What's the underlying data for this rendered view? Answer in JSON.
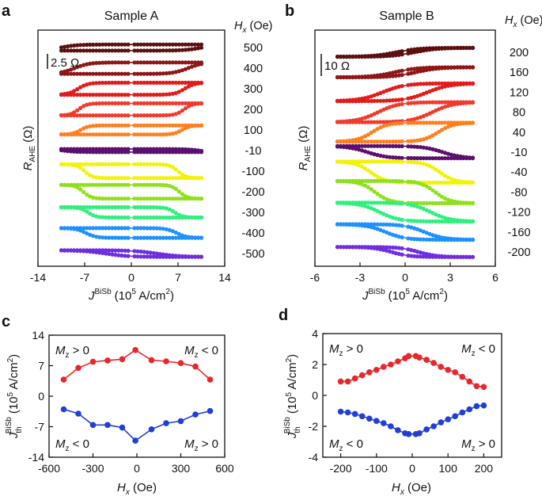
{
  "chart_data": [
    {
      "panel": "a",
      "type": "line",
      "title": "Sample A",
      "xlabel_parts": [
        "J",
        "BiSb",
        "(10",
        "5",
        " A/cm",
        "2",
        ")"
      ],
      "ylabel_parts": [
        "R",
        "AHE",
        " (Ω)"
      ],
      "right_header_parts": [
        "H",
        "x",
        " (Oe)"
      ],
      "scale_bar_label": "2.5 Ω",
      "xlim": [
        -14,
        14
      ],
      "xticks": [
        -14,
        -7,
        0,
        7,
        14
      ],
      "xmax_sweep": 10.5,
      "scale_ohm": 2.5,
      "offset_ohm": 2.7,
      "series": [
        {
          "hx": "500",
          "color": "#5c0f0f",
          "jth": 10.6,
          "dr": 1.0,
          "sweep": 2.5
        },
        {
          "hx": "400",
          "color": "#8e1616",
          "jth": 8.5,
          "dr": 1.9,
          "sweep": 2.2
        },
        {
          "hx": "300",
          "color": "#e21b1b",
          "jth": 8.0,
          "dr": 2.0,
          "sweep": 1.5
        },
        {
          "hx": "200",
          "color": "#ef3b2c",
          "jth": 7.9,
          "dr": 2.0,
          "sweep": 1.2
        },
        {
          "hx": "100",
          "color": "#ff7f1e",
          "jth": 7.6,
          "dr": 1.5,
          "sweep": 1.2
        },
        {
          "hx": "-10",
          "color": "#5b0f6e",
          "jth": 10.2,
          "dr": -0.5,
          "sweep": 2.0
        },
        {
          "hx": "-100",
          "color": "#f2f20a",
          "jth": 7.0,
          "dr": -2.3,
          "sweep": 1.2
        },
        {
          "hx": "-200",
          "color": "#8fe01c",
          "jth": 7.2,
          "dr": -2.3,
          "sweep": 1.2
        },
        {
          "hx": "-300",
          "color": "#2ff07c",
          "jth": 6.5,
          "dr": -1.7,
          "sweep": 1.2
        },
        {
          "hx": "-400",
          "color": "#1e90ff",
          "jth": 6.8,
          "dr": -1.6,
          "sweep": 1.5
        },
        {
          "hx": "-500",
          "color": "#6e2ee0",
          "jth": 3.8,
          "dr": -1.1,
          "sweep": 3.5
        }
      ]
    },
    {
      "panel": "b",
      "type": "line",
      "title": "Sample B",
      "xlabel_parts": [
        "J",
        "BiSb",
        "(10",
        "5",
        " A/cm",
        "2",
        ")"
      ],
      "ylabel_parts": [
        "R",
        "AHE",
        " (Ω)"
      ],
      "right_header_parts": [
        "H",
        "x",
        " (Oe)"
      ],
      "scale_bar_label": "10 Ω",
      "xlim": [
        -6,
        6
      ],
      "xticks": [
        -6,
        -3,
        0,
        3,
        6
      ],
      "xmax_sweep": 4.5,
      "scale_ohm": 10,
      "offset_ohm": 11.5,
      "series": [
        {
          "hx": "200",
          "color": "#5c0f0f",
          "jth": 0.6,
          "dr": 4.0,
          "sweep": 1.5
        },
        {
          "hx": "160",
          "color": "#8e1616",
          "jth": 0.7,
          "dr": 4.5,
          "sweep": 1.5
        },
        {
          "hx": "120",
          "color": "#e21b1b",
          "jth": 1.5,
          "dr": 8.0,
          "sweep": 1.5
        },
        {
          "hx": "80",
          "color": "#ef3b2c",
          "jth": 1.8,
          "dr": 9.0,
          "sweep": 1.4
        },
        {
          "hx": "40",
          "color": "#ff7f1e",
          "jth": 2.2,
          "dr": 8.5,
          "sweep": 1.0
        },
        {
          "hx": "-10",
          "color": "#5b0f6e",
          "jth": 2.5,
          "dr": -5.5,
          "sweep": 1.3
        },
        {
          "hx": "-40",
          "color": "#f2f20a",
          "jth": 2.3,
          "dr": -9.5,
          "sweep": 1.0
        },
        {
          "hx": "-80",
          "color": "#8fe01c",
          "jth": 2.0,
          "dr": -10.0,
          "sweep": 1.0
        },
        {
          "hx": "-120",
          "color": "#2ff07c",
          "jth": 1.7,
          "dr": -8.5,
          "sweep": 1.3
        },
        {
          "hx": "-160",
          "color": "#1e90ff",
          "jth": 1.3,
          "dr": -7.0,
          "sweep": 1.3
        },
        {
          "hx": "-200",
          "color": "#6e2ee0",
          "jth": 0.9,
          "dr": -4.5,
          "sweep": 1.2
        }
      ]
    },
    {
      "panel": "c",
      "type": "line",
      "xlabel_parts": [
        "H",
        "x",
        " (Oe)"
      ],
      "ylabel_parts": [
        "J",
        "th",
        "BiSb",
        "(10",
        "5",
        " A/cm",
        "2",
        ")"
      ],
      "xlim": [
        -600,
        600
      ],
      "ylim": [
        -14,
        14
      ],
      "xticks": [
        -600,
        -300,
        0,
        300,
        600
      ],
      "yticks": [
        -14,
        -7,
        0,
        7,
        14
      ],
      "series": [
        {
          "name": "positive",
          "color": "#e8262b",
          "x": [
            -500,
            -400,
            -300,
            -200,
            -100,
            -10,
            100,
            200,
            300,
            400,
            500
          ],
          "y": [
            3.8,
            6.5,
            7.9,
            8.2,
            8.5,
            10.6,
            8.3,
            8.0,
            7.6,
            6.8,
            3.8
          ]
        },
        {
          "name": "negative",
          "color": "#1f3fd6",
          "x": [
            -500,
            -400,
            -300,
            -200,
            -100,
            -10,
            100,
            200,
            300,
            400,
            500
          ],
          "y": [
            -3.0,
            -4.0,
            -6.6,
            -6.6,
            -7.2,
            -10.2,
            -7.6,
            -6.2,
            -5.7,
            -4.2,
            -3.4
          ]
        }
      ],
      "annotations": [
        {
          "text": "M_z > 0",
          "corner": "top-left",
          "m": "M",
          "sub": "z",
          "rest": " > 0"
        },
        {
          "text": "M_z < 0",
          "corner": "top-right",
          "m": "M",
          "sub": "z",
          "rest": " < 0"
        },
        {
          "text": "M_z < 0",
          "corner": "bottom-left",
          "m": "M",
          "sub": "z",
          "rest": " < 0"
        },
        {
          "text": "M_z > 0",
          "corner": "bottom-right",
          "m": "M",
          "sub": "z",
          "rest": " > 0"
        }
      ]
    },
    {
      "panel": "d",
      "type": "line",
      "xlabel_parts": [
        "H",
        "x",
        " (Oe)"
      ],
      "ylabel_parts": [
        "J",
        "th",
        "BiSb",
        "(10",
        "5",
        " A/cm",
        "2",
        ")"
      ],
      "xlim": [
        -250,
        250
      ],
      "ylim": [
        -4,
        4
      ],
      "xticks": [
        -200,
        -100,
        0,
        100,
        200
      ],
      "yticks": [
        -4,
        -2,
        0,
        2,
        4
      ],
      "series": [
        {
          "name": "positive",
          "color": "#e8262b",
          "x": [
            -200,
            -180,
            -160,
            -140,
            -120,
            -100,
            -80,
            -60,
            -40,
            -20,
            -10,
            10,
            20,
            40,
            60,
            80,
            100,
            120,
            140,
            160,
            180,
            200
          ],
          "y": [
            0.9,
            0.9,
            1.1,
            1.3,
            1.5,
            1.65,
            1.85,
            2.0,
            2.2,
            2.4,
            2.55,
            2.55,
            2.45,
            2.3,
            2.1,
            1.85,
            1.65,
            1.5,
            1.2,
            0.9,
            0.6,
            0.55
          ]
        },
        {
          "name": "negative",
          "color": "#1f3fd6",
          "x": [
            -200,
            -180,
            -160,
            -140,
            -120,
            -100,
            -80,
            -60,
            -40,
            -20,
            -10,
            10,
            20,
            40,
            60,
            80,
            100,
            120,
            140,
            160,
            180,
            200
          ],
          "y": [
            -1.05,
            -1.1,
            -1.2,
            -1.35,
            -1.5,
            -1.65,
            -1.8,
            -2.0,
            -2.25,
            -2.45,
            -2.5,
            -2.5,
            -2.45,
            -2.2,
            -2.0,
            -1.75,
            -1.55,
            -1.35,
            -1.1,
            -0.9,
            -0.7,
            -0.65
          ]
        }
      ],
      "annotations": [
        {
          "text": "M_z > 0",
          "corner": "top-left",
          "m": "M",
          "sub": "z",
          "rest": " > 0"
        },
        {
          "text": "M_z < 0",
          "corner": "top-right",
          "m": "M",
          "sub": "z",
          "rest": " < 0"
        },
        {
          "text": "M_z < 0",
          "corner": "bottom-left",
          "m": "M",
          "sub": "z",
          "rest": " < 0"
        },
        {
          "text": "M_z > 0",
          "corner": "bottom-right",
          "m": "M",
          "sub": "z",
          "rest": " > 0"
        }
      ]
    }
  ]
}
